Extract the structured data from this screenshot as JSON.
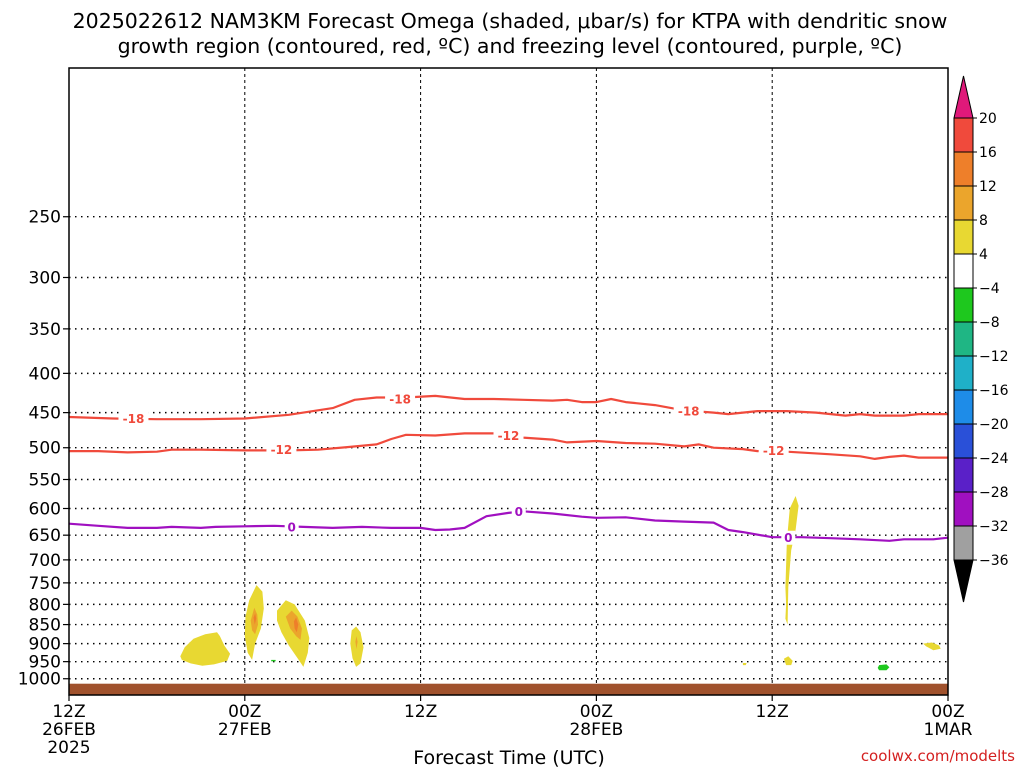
{
  "chart_data": {
    "type": "area",
    "title": [
      "2025022612 NAM3KM Forecast Omega (shaded, μbar/s) for KTPA with dendritic snow",
      "growth region (contoured, red, ºC) and freezing level (contoured, purple, ºC)"
    ],
    "xlabel": "Forecast Time (UTC)",
    "ylabel": "",
    "y_axis": {
      "type": "log-pressure",
      "units": "hPa",
      "ylim": [
        1050,
        160
      ],
      "ticks": [
        250,
        300,
        350,
        400,
        450,
        500,
        550,
        600,
        650,
        700,
        750,
        800,
        850,
        900,
        950,
        1000
      ]
    },
    "x_axis": {
      "units": "forecast hour",
      "xlim": [
        0,
        60
      ],
      "ticks": [
        {
          "hour": 0,
          "labels": [
            "12Z",
            "26FEB",
            "2025"
          ]
        },
        {
          "hour": 12,
          "labels": [
            "00Z",
            "27FEB"
          ]
        },
        {
          "hour": 24,
          "labels": [
            "12Z"
          ]
        },
        {
          "hour": 36,
          "labels": [
            "00Z",
            "28FEB"
          ]
        },
        {
          "hour": 48,
          "labels": [
            "12Z"
          ]
        },
        {
          "hour": 60,
          "labels": [
            "00Z",
            "1MAR"
          ]
        }
      ]
    },
    "grid": true,
    "colorbar": {
      "location": "right",
      "units": "μbar/s",
      "ticks": [
        "20",
        "16",
        "12",
        "8",
        "4",
        "−4",
        "−8",
        "−12",
        "−16",
        "−20",
        "−24",
        "−28",
        "−32",
        "−36"
      ],
      "segments": [
        {
          "range": [
            20,
            99
          ],
          "color": "#e0197a"
        },
        {
          "range": [
            16,
            20
          ],
          "color": "#f04a3c"
        },
        {
          "range": [
            12,
            16
          ],
          "color": "#ee7f2a"
        },
        {
          "range": [
            8,
            12
          ],
          "color": "#eba52c"
        },
        {
          "range": [
            4,
            8
          ],
          "color": "#e8d832"
        },
        {
          "range": [
            -4,
            4
          ],
          "color": "#ffffff"
        },
        {
          "range": [
            -8,
            -4
          ],
          "color": "#1ec81e"
        },
        {
          "range": [
            -12,
            -8
          ],
          "color": "#1fb684"
        },
        {
          "range": [
            -16,
            -12
          ],
          "color": "#1fb0c8"
        },
        {
          "range": [
            -20,
            -16
          ],
          "color": "#1e8ce8"
        },
        {
          "range": [
            -24,
            -20
          ],
          "color": "#2a50d8"
        },
        {
          "range": [
            -28,
            -24
          ],
          "color": "#5a20c8"
        },
        {
          "range": [
            -32,
            -28
          ],
          "color": "#a010c0"
        },
        {
          "range": [
            -36,
            -32
          ],
          "color": "#a0a0a0"
        },
        {
          "range": [
            -99,
            -36
          ],
          "color": "#000000"
        }
      ]
    },
    "series": [
      {
        "name": "-18",
        "color": "#f04a3c",
        "labels": [
          {
            "x": 4.4,
            "y": 458
          },
          {
            "x": 22.6,
            "y": 432
          },
          {
            "x": 42.3,
            "y": 448
          }
        ],
        "points": [
          [
            0,
            456
          ],
          [
            3,
            458
          ],
          [
            6,
            459
          ],
          [
            9,
            459
          ],
          [
            12,
            458
          ],
          [
            15,
            453
          ],
          [
            18,
            444
          ],
          [
            19.5,
            433
          ],
          [
            21,
            430
          ],
          [
            23,
            430
          ],
          [
            25,
            428
          ],
          [
            27,
            432
          ],
          [
            29,
            432
          ],
          [
            31,
            433
          ],
          [
            33,
            434
          ],
          [
            34,
            433
          ],
          [
            35,
            436
          ],
          [
            36,
            436
          ],
          [
            37,
            432
          ],
          [
            38,
            436
          ],
          [
            40,
            440
          ],
          [
            42,
            447
          ],
          [
            44,
            450
          ],
          [
            45,
            452
          ],
          [
            46,
            450
          ],
          [
            47,
            448
          ],
          [
            49,
            448
          ],
          [
            51,
            450
          ],
          [
            52,
            452
          ],
          [
            53,
            454
          ],
          [
            54,
            452
          ],
          [
            55,
            454
          ],
          [
            57,
            454
          ],
          [
            58,
            452
          ],
          [
            60,
            452
          ]
        ]
      },
      {
        "name": "-12",
        "color": "#f04a3c",
        "labels": [
          {
            "x": 14.5,
            "y": 503
          },
          {
            "x": 30,
            "y": 482
          },
          {
            "x": 48.1,
            "y": 504
          }
        ],
        "points": [
          [
            0,
            505
          ],
          [
            2,
            505
          ],
          [
            4,
            507
          ],
          [
            6,
            506
          ],
          [
            7,
            503
          ],
          [
            9,
            503
          ],
          [
            12,
            504
          ],
          [
            15,
            504
          ],
          [
            17,
            503
          ],
          [
            19,
            499
          ],
          [
            21,
            495
          ],
          [
            22,
            487
          ],
          [
            23,
            481
          ],
          [
            25,
            482
          ],
          [
            27,
            479
          ],
          [
            29,
            479
          ],
          [
            30,
            482
          ],
          [
            31,
            485
          ],
          [
            33,
            488
          ],
          [
            34,
            492
          ],
          [
            36,
            490
          ],
          [
            38,
            493
          ],
          [
            40,
            494
          ],
          [
            42,
            498
          ],
          [
            43,
            495
          ],
          [
            44,
            500
          ],
          [
            46,
            502
          ],
          [
            47,
            505
          ],
          [
            48,
            504
          ],
          [
            49,
            506
          ],
          [
            52,
            510
          ],
          [
            54,
            513
          ],
          [
            55,
            517
          ],
          [
            56,
            514
          ],
          [
            57,
            512
          ],
          [
            58,
            515
          ],
          [
            60,
            515
          ]
        ]
      },
      {
        "name": "0",
        "color": "#a010c0",
        "labels": [
          {
            "x": 15.2,
            "y": 634
          },
          {
            "x": 30.7,
            "y": 605
          },
          {
            "x": 49.1,
            "y": 655
          }
        ],
        "points": [
          [
            0,
            628
          ],
          [
            2,
            632
          ],
          [
            4,
            636
          ],
          [
            6,
            636
          ],
          [
            7,
            634
          ],
          [
            9,
            636
          ],
          [
            10,
            634
          ],
          [
            12,
            633
          ],
          [
            14,
            632
          ],
          [
            16,
            634
          ],
          [
            18,
            636
          ],
          [
            20,
            634
          ],
          [
            22,
            636
          ],
          [
            24,
            636
          ],
          [
            25,
            640
          ],
          [
            26,
            639
          ],
          [
            27,
            636
          ],
          [
            28.5,
            614
          ],
          [
            30,
            608
          ],
          [
            31,
            605
          ],
          [
            33,
            609
          ],
          [
            35,
            615
          ],
          [
            36,
            617
          ],
          [
            38,
            616
          ],
          [
            40,
            622
          ],
          [
            42,
            624
          ],
          [
            44,
            626
          ],
          [
            45,
            640
          ],
          [
            46,
            644
          ],
          [
            48,
            654
          ],
          [
            50,
            654
          ],
          [
            52,
            656
          ],
          [
            54,
            658
          ],
          [
            56,
            661
          ],
          [
            57,
            658
          ],
          [
            59,
            658
          ],
          [
            60,
            655
          ]
        ]
      }
    ],
    "omega_shaded_regions": [
      {
        "value_range": [
          4,
          8
        ],
        "polygon": [
          [
            7.6,
            935
          ],
          [
            7.9,
            910
          ],
          [
            8.5,
            887
          ],
          [
            9.3,
            875
          ],
          [
            10.1,
            870
          ],
          [
            10.3,
            880
          ],
          [
            10.6,
            905
          ],
          [
            11,
            928
          ],
          [
            10.8,
            948
          ],
          [
            9.9,
            958
          ],
          [
            9.1,
            962
          ],
          [
            8.3,
            955
          ],
          [
            7.7,
            945
          ]
        ]
      },
      {
        "value_range": [
          4,
          8
        ],
        "polygon": [
          [
            12.05,
            830
          ],
          [
            12.3,
            790
          ],
          [
            12.8,
            755
          ],
          [
            13.2,
            770
          ],
          [
            13.3,
            810
          ],
          [
            13.1,
            860
          ],
          [
            12.7,
            900
          ],
          [
            12.5,
            945
          ],
          [
            12.2,
            925
          ],
          [
            12.0,
            880
          ]
        ]
      },
      {
        "value_range": [
          8,
          12
        ],
        "polygon": [
          [
            12.4,
            840
          ],
          [
            12.65,
            808
          ],
          [
            12.85,
            825
          ],
          [
            12.9,
            850
          ],
          [
            12.7,
            875
          ],
          [
            12.5,
            865
          ]
        ]
      },
      {
        "value_range": [
          12,
          16
        ],
        "polygon": [
          [
            12.6,
            833
          ],
          [
            12.7,
            822
          ],
          [
            12.78,
            835
          ],
          [
            12.68,
            850
          ]
        ]
      },
      {
        "value_range": [
          4,
          8
        ],
        "polygon": [
          [
            14.2,
            815
          ],
          [
            14.8,
            790
          ],
          [
            15.4,
            800
          ],
          [
            16.1,
            840
          ],
          [
            16.4,
            885
          ],
          [
            16.3,
            925
          ],
          [
            16.0,
            965
          ],
          [
            15.6,
            940
          ],
          [
            15.0,
            905
          ],
          [
            14.5,
            870
          ],
          [
            14.2,
            840
          ]
        ]
      },
      {
        "value_range": [
          8,
          12
        ],
        "polygon": [
          [
            14.8,
            830
          ],
          [
            15.2,
            815
          ],
          [
            15.6,
            830
          ],
          [
            15.9,
            860
          ],
          [
            15.8,
            890
          ],
          [
            15.5,
            880
          ],
          [
            15.1,
            860
          ]
        ]
      },
      {
        "value_range": [
          12,
          16
        ],
        "polygon": [
          [
            15.35,
            842
          ],
          [
            15.5,
            832
          ],
          [
            15.65,
            850
          ],
          [
            15.55,
            870
          ],
          [
            15.4,
            860
          ]
        ]
      },
      {
        "value_range": [
          4,
          8
        ],
        "polygon": [
          [
            19.2,
            900
          ],
          [
            19.3,
            865
          ],
          [
            19.6,
            855
          ],
          [
            19.9,
            870
          ],
          [
            20.1,
            910
          ],
          [
            19.9,
            955
          ],
          [
            19.6,
            965
          ],
          [
            19.35,
            940
          ]
        ]
      },
      {
        "value_range": [
          8,
          12
        ],
        "polygon": [
          [
            19.55,
            895
          ],
          [
            19.62,
            880
          ],
          [
            19.7,
            895
          ],
          [
            19.62,
            915
          ]
        ]
      },
      {
        "value_range": [
          4,
          8
        ],
        "polygon": [
          [
            48.9,
            760
          ],
          [
            49.0,
            660
          ],
          [
            49.2,
            600
          ],
          [
            49.6,
            578
          ],
          [
            49.8,
            595
          ],
          [
            49.6,
            640
          ],
          [
            49.3,
            680
          ],
          [
            49.1,
            760
          ],
          [
            49.05,
            850
          ],
          [
            48.9,
            835
          ],
          [
            48.95,
            800
          ]
        ]
      },
      {
        "value_range": [
          4,
          8
        ],
        "polygon": [
          [
            48.8,
            942
          ],
          [
            49.1,
            935
          ],
          [
            49.4,
            948
          ],
          [
            49.3,
            960
          ],
          [
            48.95,
            960
          ]
        ]
      },
      {
        "value_range": [
          4,
          8
        ],
        "polygon": [
          [
            58.3,
            900
          ],
          [
            58.9,
            897
          ],
          [
            59.4,
            905
          ],
          [
            59.5,
            914
          ],
          [
            59.0,
            918
          ],
          [
            58.5,
            907
          ]
        ]
      },
      {
        "value_range": [
          4,
          8
        ],
        "polygon": [
          [
            46.0,
            954
          ],
          [
            46.25,
            954
          ],
          [
            46.2,
            960
          ],
          [
            46.0,
            960
          ]
        ]
      },
      {
        "value_range": [
          -8,
          -4
        ],
        "polygon": [
          [
            55.3,
            960
          ],
          [
            55.8,
            958
          ],
          [
            56.0,
            966
          ],
          [
            55.8,
            975
          ],
          [
            55.3,
            975
          ],
          [
            55.2,
            968
          ]
        ]
      },
      {
        "value_range": [
          -8,
          -4
        ],
        "polygon": [
          [
            13.8,
            945
          ],
          [
            14.1,
            945
          ],
          [
            14.1,
            949
          ],
          [
            13.8,
            949
          ]
        ]
      }
    ],
    "terrain_fill": {
      "color": "#a0522d",
      "top_hPa": 1015
    }
  },
  "credit": "coolwx.com/modelts"
}
